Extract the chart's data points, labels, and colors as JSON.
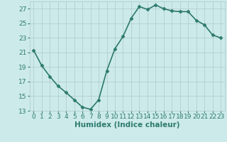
{
  "x": [
    0,
    1,
    2,
    3,
    4,
    5,
    6,
    7,
    8,
    9,
    10,
    11,
    12,
    13,
    14,
    15,
    16,
    17,
    18,
    19,
    20,
    21,
    22,
    23
  ],
  "y": [
    21.3,
    19.2,
    17.7,
    16.4,
    15.5,
    14.5,
    13.5,
    13.2,
    14.5,
    18.5,
    21.5,
    23.2,
    25.7,
    27.3,
    26.9,
    27.5,
    27.0,
    26.7,
    26.6,
    26.6,
    25.4,
    24.8,
    23.4,
    23.0
  ],
  "line_color": "#2d7a6e",
  "marker": "D",
  "marker_size": 2.5,
  "bg_color": "#cceaea",
  "grid_color": "#b0c8c8",
  "xlabel": "Humidex (Indice chaleur)",
  "xlim": [
    -0.5,
    23.5
  ],
  "ylim": [
    13,
    28
  ],
  "yticks": [
    13,
    15,
    17,
    19,
    21,
    23,
    25,
    27
  ],
  "xticks": [
    0,
    1,
    2,
    3,
    4,
    5,
    6,
    7,
    8,
    9,
    10,
    11,
    12,
    13,
    14,
    15,
    16,
    17,
    18,
    19,
    20,
    21,
    22,
    23
  ],
  "xlabel_fontsize": 7.5,
  "tick_fontsize": 6.5,
  "linewidth": 1.2,
  "tick_color": "#2d7a6e"
}
